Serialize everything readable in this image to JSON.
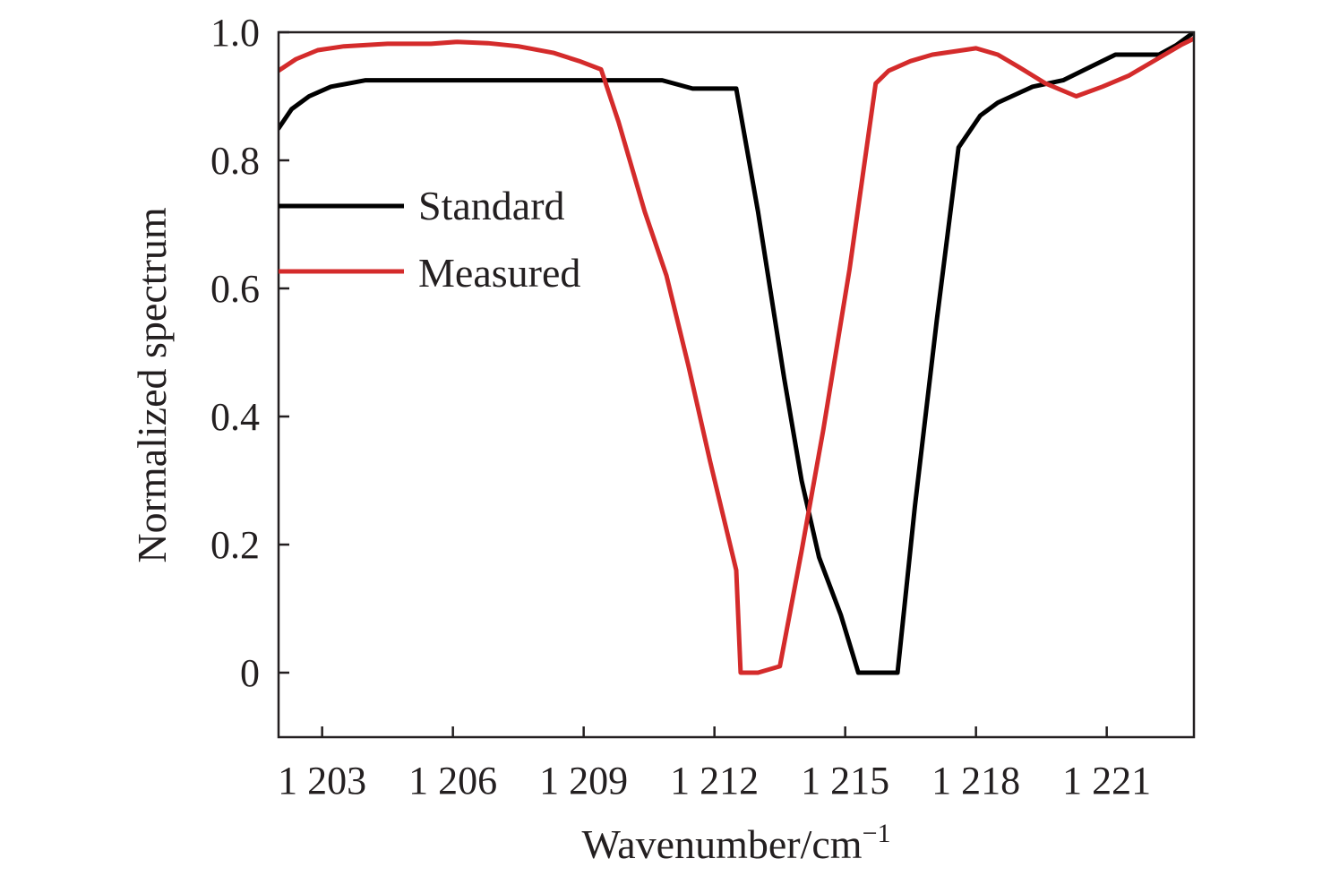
{
  "chart_data": {
    "type": "line",
    "xlabel": "Wavenumber/cm",
    "xlabel_superscript": "−1",
    "ylabel": "Normalized spectrum",
    "xlim": [
      1202,
      1223
    ],
    "ylim": [
      -0.1,
      1.0
    ],
    "grid": false,
    "legend_placement": "upper-left",
    "x_ticks": [
      1203,
      1206,
      1209,
      1212,
      1215,
      1218,
      1221
    ],
    "x_tick_labels": [
      "1 203",
      "1 206",
      "1 209",
      "1 212",
      "1 215",
      "1 218",
      "1 221"
    ],
    "y_ticks": [
      0,
      0.2,
      0.4,
      0.6,
      0.8,
      1.0
    ],
    "y_tick_labels": [
      "0",
      "0.2",
      "0.4",
      "0.6",
      "0.8",
      "1.0"
    ],
    "series": [
      {
        "name": "Standard",
        "color": "#000000",
        "points": [
          [
            1202.0,
            0.85
          ],
          [
            1202.3,
            0.88
          ],
          [
            1202.7,
            0.9
          ],
          [
            1203.2,
            0.915
          ],
          [
            1204.0,
            0.925
          ],
          [
            1205.0,
            0.925
          ],
          [
            1207.0,
            0.925
          ],
          [
            1209.0,
            0.925
          ],
          [
            1210.8,
            0.925
          ],
          [
            1211.5,
            0.912
          ],
          [
            1212.5,
            0.912
          ],
          [
            1213.0,
            0.72
          ],
          [
            1213.6,
            0.46
          ],
          [
            1214.0,
            0.3
          ],
          [
            1214.4,
            0.18
          ],
          [
            1214.9,
            0.09
          ],
          [
            1215.3,
            0.0
          ],
          [
            1216.2,
            0.0
          ],
          [
            1216.6,
            0.26
          ],
          [
            1217.1,
            0.55
          ],
          [
            1217.6,
            0.82
          ],
          [
            1218.1,
            0.87
          ],
          [
            1218.5,
            0.89
          ],
          [
            1219.3,
            0.915
          ],
          [
            1220.0,
            0.925
          ],
          [
            1220.6,
            0.945
          ],
          [
            1221.2,
            0.965
          ],
          [
            1221.8,
            0.965
          ],
          [
            1222.2,
            0.965
          ],
          [
            1222.6,
            0.98
          ],
          [
            1223.0,
            1.0
          ]
        ]
      },
      {
        "name": "Measured",
        "color": "#d42b2b",
        "points": [
          [
            1202.0,
            0.94
          ],
          [
            1202.4,
            0.958
          ],
          [
            1202.9,
            0.972
          ],
          [
            1203.5,
            0.978
          ],
          [
            1204.5,
            0.982
          ],
          [
            1205.5,
            0.982
          ],
          [
            1206.1,
            0.985
          ],
          [
            1206.8,
            0.983
          ],
          [
            1207.5,
            0.978
          ],
          [
            1208.3,
            0.968
          ],
          [
            1208.9,
            0.955
          ],
          [
            1209.4,
            0.942
          ],
          [
            1209.8,
            0.86
          ],
          [
            1210.4,
            0.72
          ],
          [
            1210.9,
            0.62
          ],
          [
            1211.4,
            0.48
          ],
          [
            1211.9,
            0.33
          ],
          [
            1212.5,
            0.16
          ],
          [
            1212.6,
            0.0
          ],
          [
            1213.0,
            0.0
          ],
          [
            1213.5,
            0.01
          ],
          [
            1214.0,
            0.19
          ],
          [
            1214.5,
            0.38
          ],
          [
            1215.1,
            0.63
          ],
          [
            1215.7,
            0.92
          ],
          [
            1216.0,
            0.94
          ],
          [
            1216.5,
            0.955
          ],
          [
            1217.0,
            0.965
          ],
          [
            1218.0,
            0.975
          ],
          [
            1218.5,
            0.965
          ],
          [
            1219.0,
            0.945
          ],
          [
            1219.6,
            0.92
          ],
          [
            1220.3,
            0.9
          ],
          [
            1220.9,
            0.915
          ],
          [
            1221.5,
            0.932
          ],
          [
            1222.2,
            0.96
          ],
          [
            1222.7,
            0.98
          ],
          [
            1223.0,
            0.99
          ]
        ]
      }
    ]
  }
}
